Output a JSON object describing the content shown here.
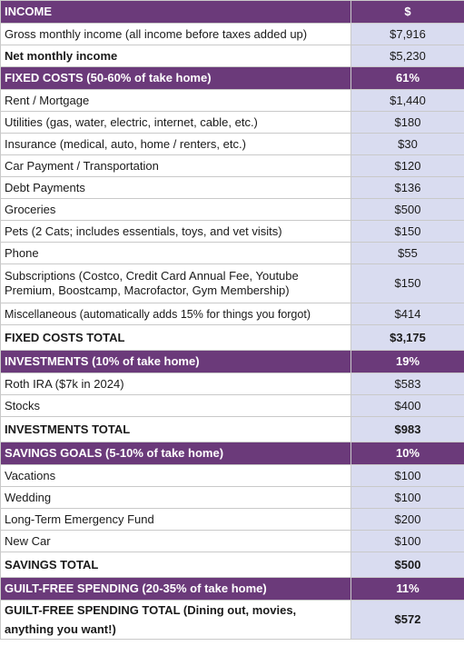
{
  "sections": [
    {
      "header": {
        "label": "INCOME",
        "value": "$"
      },
      "rows": [
        {
          "label": "Gross monthly income (all income before taxes added up)",
          "value": "$7,916"
        }
      ],
      "extra": {
        "label": "Net monthly income",
        "value": "$5,230"
      }
    },
    {
      "header": {
        "label": "FIXED COSTS (50-60% of take home)",
        "value": "61%"
      },
      "rows": [
        {
          "label": "Rent / Mortgage",
          "value": "$1,440"
        },
        {
          "label": "Utilities (gas, water, electric, internet, cable, etc.)",
          "value": "$180"
        },
        {
          "label": "Insurance (medical, auto, home / renters, etc.)",
          "value": "$30"
        },
        {
          "label": "Car Payment / Transportation",
          "value": "$120"
        },
        {
          "label": "Debt Payments",
          "value": "$136"
        },
        {
          "label": "Groceries",
          "value": "$500"
        },
        {
          "label": "Pets (2 Cats; includes essentials, toys, and vet visits)",
          "value": "$150"
        },
        {
          "label": "Phone",
          "value": "$55"
        },
        {
          "label": "Subscriptions (Costco, Credit Card Annual Fee, Youtube Premium, Boostcamp, Macrofactor, Gym Membership)",
          "value": "$150"
        },
        {
          "label": "Miscellaneous (automatically adds 15% for things you forgot)",
          "value": "$414"
        }
      ],
      "total": {
        "label": "FIXED COSTS TOTAL",
        "value": "$3,175"
      }
    },
    {
      "header": {
        "label": "INVESTMENTS (10% of take home)",
        "value": "19%"
      },
      "rows": [
        {
          "label": "Roth IRA ($7k in 2024)",
          "value": "$583"
        },
        {
          "label": "Stocks",
          "value": "$400"
        }
      ],
      "total": {
        "label": "INVESTMENTS TOTAL",
        "value": "$983"
      }
    },
    {
      "header": {
        "label": "SAVINGS GOALS (5-10% of take home)",
        "value": "10%"
      },
      "rows": [
        {
          "label": "Vacations",
          "value": "$100"
        },
        {
          "label": "Wedding",
          "value": "$100"
        },
        {
          "label": "Long-Term Emergency Fund",
          "value": "$200"
        },
        {
          "label": "New Car",
          "value": "$100"
        }
      ],
      "total": {
        "label": "SAVINGS TOTAL",
        "value": "$500"
      }
    },
    {
      "header": {
        "label": "GUILT-FREE SPENDING (20-35% of take home)",
        "value": "11%"
      },
      "total": {
        "label": "GUILT-FREE SPENDING TOTAL (Dining out, movies, anything you want!)",
        "value": "$572"
      }
    }
  ]
}
